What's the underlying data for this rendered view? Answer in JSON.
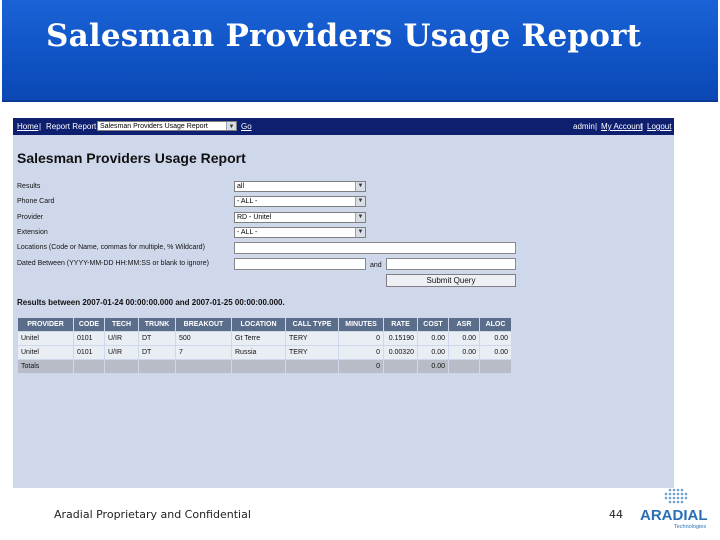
{
  "slide": {
    "title": "Salesman Providers Usage Report",
    "footer": "Aradial Proprietary and Confidential",
    "page_number": "44",
    "logo": {
      "name": "ARADIAL",
      "tagline": "Technologies"
    }
  },
  "topbar": {
    "home": "Home",
    "sep": "|",
    "report_label": "Report Report",
    "report_select": "Salesman Providers Usage Report",
    "go": "Go",
    "admin": "admin",
    "my_account": "My Account",
    "logout": "Logout"
  },
  "page": {
    "title": "Salesman Providers Usage Report",
    "form": {
      "results": {
        "label": "Results",
        "value": "all"
      },
      "phone_card": {
        "label": "Phone Card",
        "value": "- ALL -"
      },
      "provider": {
        "label": "Provider",
        "value": "RD - Unitel"
      },
      "extension": {
        "label": "Extension",
        "value": "- ALL -"
      },
      "locations": {
        "label": "Locations (Code or Name, commas for multiple, % Wildcard)",
        "value": ""
      },
      "dates": {
        "label": "Dated Between (YYYY-MM-DD HH:MM:SS or blank to ignore)",
        "from": "",
        "to": "",
        "and_label": "and"
      },
      "submit": "Submit Query"
    },
    "results_header": "Results between 2007-01-24 00:00:00.000 and 2007-01-25 00:00:00.000.",
    "table": {
      "columns": [
        "PROVIDER",
        "CODE",
        "TECH",
        "TRUNK",
        "BREAKOUT",
        "LOCATION",
        "CALL TYPE",
        "MINUTES",
        "RATE",
        "COST",
        "ASR",
        "ALOC"
      ],
      "rows": [
        [
          "Unitel",
          "0101",
          "U/IR",
          "DT",
          "500",
          "Gt Terre",
          "TERY",
          "0",
          "0.15190",
          "0.00",
          "0.00",
          "0.00"
        ],
        [
          "Unitel",
          "0101",
          "U/IR",
          "DT",
          "7",
          "Russia",
          "TERY",
          "0",
          "0.00320",
          "0.00",
          "0.00",
          "0.00"
        ]
      ],
      "totals": {
        "label": "Totals",
        "minutes": "0",
        "cost": "0.00"
      }
    }
  },
  "colors": {
    "banner": "#1a63d6",
    "screen_bg": "#cfd8ea",
    "topbar": "#0d1f6e",
    "table_header": "#5a6e8c",
    "logo_blue": "#2a6fb5"
  }
}
